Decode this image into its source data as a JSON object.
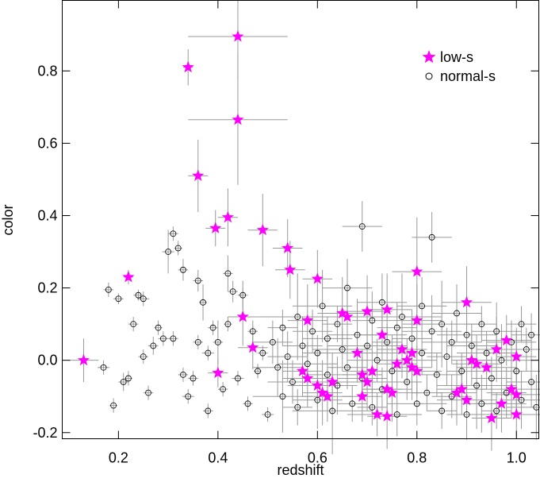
{
  "chart_data": {
    "type": "scatter",
    "xlabel": "redshift",
    "ylabel": "color",
    "xlim": [
      0.087,
      1.045
    ],
    "ylim": [
      -0.217,
      0.995
    ],
    "xticks": [
      0.2,
      0.4,
      0.6,
      0.8,
      {
        "value": 1,
        "label": "1.0"
      }
    ],
    "yticks": [
      -0.2,
      {
        "value": 0,
        "label": "0.0"
      },
      0.2,
      0.4,
      0.6,
      0.8
    ],
    "legend": "upper right",
    "errorbar_color": "#999999",
    "series": [
      {
        "name": "normal-s",
        "color": "#000000",
        "marker": "circle",
        "x": [
          0.18,
          0.19,
          0.2,
          0.17,
          0.21,
          0.22,
          0.23,
          0.24,
          0.25,
          0.25,
          0.26,
          0.27,
          0.28,
          0.29,
          0.3,
          0.31,
          0.31,
          0.32,
          0.33,
          0.33,
          0.34,
          0.35,
          0.36,
          0.36,
          0.37,
          0.38,
          0.38,
          0.39,
          0.4,
          0.41,
          0.42,
          0.42,
          0.43,
          0.44,
          0.45,
          0.46,
          0.47,
          0.48,
          0.49,
          0.5,
          0.51,
          0.52,
          0.53,
          0.53,
          0.54,
          0.55,
          0.56,
          0.56,
          0.57,
          0.58,
          0.59,
          0.6,
          0.6,
          0.61,
          0.62,
          0.62,
          0.63,
          0.64,
          0.64,
          0.65,
          0.66,
          0.66,
          0.67,
          0.68,
          0.69,
          0.69,
          0.7,
          0.71,
          0.71,
          0.72,
          0.73,
          0.73,
          0.74,
          0.75,
          0.76,
          0.76,
          0.77,
          0.78,
          0.79,
          0.8,
          0.81,
          0.81,
          0.82,
          0.83,
          0.83,
          0.84,
          0.85,
          0.85,
          0.86,
          0.87,
          0.87,
          0.88,
          0.89,
          0.9,
          0.9,
          0.91,
          0.92,
          0.93,
          0.93,
          0.94,
          0.95,
          0.96,
          0.96,
          0.97,
          0.98,
          0.99,
          1.0,
          1.01,
          1.01,
          1.02,
          1.03,
          1.03,
          1.04
        ],
        "y": [
          0.195,
          -0.125,
          0.17,
          -0.02,
          -0.06,
          -0.05,
          0.1,
          0.18,
          0.17,
          0.01,
          -0.09,
          0.04,
          0.09,
          0.06,
          0.3,
          0.06,
          0.35,
          0.31,
          0.25,
          -0.04,
          -0.1,
          -0.05,
          0.22,
          0.05,
          0.16,
          -0.14,
          0.02,
          0.09,
          0.05,
          -0.08,
          0.24,
          0.1,
          0.19,
          -0.05,
          0.18,
          -0.12,
          0.08,
          -0.03,
          0.02,
          -0.15,
          0.05,
          -0.02,
          0.09,
          -0.1,
          0.01,
          -0.06,
          0.12,
          -0.13,
          0.04,
          -0.01,
          0.08,
          -0.11,
          0.02,
          0.15,
          -0.04,
          0.06,
          -0.14,
          0.1,
          -0.07,
          0.03,
          -0.02,
          0.2,
          -0.12,
          0.07,
          0.37,
          -0.05,
          0.04,
          -0.13,
          0.11,
          0.0,
          -0.08,
          0.16,
          0.05,
          -0.03,
          0.09,
          -0.15,
          0.12,
          -0.06,
          0.06,
          -0.12,
          0.02,
          0.15,
          -0.09,
          0.08,
          0.34,
          -0.04,
          0.1,
          -0.14,
          0.01,
          0.05,
          -0.1,
          0.13,
          -0.03,
          0.07,
          -0.15,
          0.04,
          -0.07,
          0.1,
          -0.12,
          0.02,
          -0.05,
          0.08,
          -0.14,
          0.0,
          -0.09,
          0.05,
          -0.03,
          0.1,
          -0.11,
          0.03,
          -0.06,
          0.07,
          -0.13
        ],
        "xerr": [
          0.01,
          0.008,
          0.01,
          0.012,
          0.01,
          0.008,
          0.01,
          0.01,
          0.012,
          0.01,
          0.01,
          0.01,
          0.008,
          0.01,
          0.012,
          0.01,
          0.01,
          0.008,
          0.01,
          0.01,
          0.012,
          0.01,
          0.01,
          0.01,
          0.008,
          0.01,
          0.012,
          0.01,
          0.01,
          0.01,
          0.01,
          0.008,
          0.01,
          0.012,
          0.01,
          0.01,
          0.01,
          0.008,
          0.01,
          0.012,
          0.04,
          0.05,
          0.03,
          0.06,
          0.04,
          0.05,
          0.08,
          0.03,
          0.04,
          0.06,
          0.04,
          0.05,
          0.03,
          0.06,
          0.04,
          0.05,
          0.08,
          0.03,
          0.04,
          0.06,
          0.04,
          0.05,
          0.03,
          0.06,
          0.04,
          0.05,
          0.08,
          0.03,
          0.04,
          0.06,
          0.04,
          0.05,
          0.03,
          0.06,
          0.04,
          0.05,
          0.08,
          0.03,
          0.04,
          0.06,
          0.04,
          0.05,
          0.03,
          0.06,
          0.04,
          0.05,
          0.08,
          0.03,
          0.04,
          0.06,
          0.04,
          0.05,
          0.03,
          0.06,
          0.04,
          0.05,
          0.08,
          0.03,
          0.04,
          0.06,
          0.04,
          0.05,
          0.03,
          0.06,
          0.04,
          0.05,
          0.08,
          0.03,
          0.04,
          0.06,
          0.05,
          0.04,
          0.06
        ],
        "yerr": [
          0.02,
          0.02,
          0.015,
          0.02,
          0.025,
          0.02,
          0.02,
          0.015,
          0.02,
          0.02,
          0.02,
          0.025,
          0.02,
          0.02,
          0.06,
          0.02,
          0.02,
          0.02,
          0.03,
          0.02,
          0.02,
          0.02,
          0.03,
          0.02,
          0.05,
          0.02,
          0.02,
          0.02,
          0.06,
          0.02,
          0.05,
          0.02,
          0.03,
          0.02,
          0.04,
          0.02,
          0.03,
          0.02,
          0.02,
          0.02,
          0.06,
          0.08,
          0.05,
          0.1,
          0.07,
          0.06,
          0.12,
          0.05,
          0.08,
          0.06,
          0.06,
          0.08,
          0.05,
          0.1,
          0.07,
          0.06,
          0.12,
          0.05,
          0.08,
          0.06,
          0.06,
          0.08,
          0.05,
          0.1,
          0.07,
          0.06,
          0.12,
          0.05,
          0.08,
          0.06,
          0.06,
          0.08,
          0.05,
          0.1,
          0.07,
          0.06,
          0.12,
          0.05,
          0.08,
          0.06,
          0.06,
          0.08,
          0.05,
          0.1,
          0.07,
          0.06,
          0.12,
          0.05,
          0.08,
          0.06,
          0.06,
          0.08,
          0.05,
          0.1,
          0.07,
          0.06,
          0.12,
          0.05,
          0.08,
          0.06,
          0.06,
          0.08,
          0.05,
          0.1,
          0.07,
          0.06,
          0.12,
          0.05,
          0.08,
          0.06,
          0.07,
          0.06,
          0.09
        ]
      },
      {
        "name": "low-s",
        "color": "#ff00ff",
        "marker": "star",
        "x": [
          0.13,
          0.22,
          0.34,
          0.44,
          0.44,
          0.36,
          0.42,
          0.395,
          0.49,
          0.54,
          0.545,
          0.6,
          0.45,
          0.47,
          0.4,
          0.58,
          0.65,
          0.66,
          0.74,
          0.8,
          0.8,
          0.9,
          0.7,
          0.57,
          0.58,
          0.6,
          0.61,
          0.62,
          0.68,
          0.69,
          0.7,
          0.72,
          0.74,
          0.73,
          0.75,
          0.76,
          0.77,
          0.78,
          0.79,
          0.8,
          0.79,
          0.69,
          0.74,
          0.71,
          0.88,
          0.89,
          0.9,
          0.91,
          0.92,
          0.94,
          0.96,
          0.98,
          0.99,
          1.0,
          0.97,
          1.0,
          0.95,
          1.0,
          0.63
        ],
        "y": [
          0.0,
          0.23,
          0.81,
          0.895,
          0.665,
          0.51,
          0.395,
          0.365,
          0.36,
          0.31,
          0.25,
          0.225,
          0.12,
          0.035,
          -0.035,
          0.11,
          0.13,
          0.12,
          0.14,
          0.245,
          0.11,
          0.16,
          0.135,
          -0.03,
          -0.05,
          -0.07,
          -0.09,
          -0.1,
          0.02,
          -0.04,
          -0.06,
          -0.15,
          -0.155,
          0.07,
          -0.09,
          -0.01,
          0.03,
          0.0,
          -0.02,
          -0.03,
          0.02,
          -0.1,
          -0.08,
          -0.03,
          -0.09,
          -0.08,
          -0.11,
          0.0,
          -0.01,
          -0.02,
          0.03,
          0.055,
          -0.08,
          0.01,
          -0.12,
          -0.15,
          -0.16,
          -0.095,
          -0.06
        ],
        "xerr": [
          0.03,
          0.01,
          0.01,
          0.1,
          0.1,
          0.02,
          0.02,
          0.02,
          0.03,
          0.03,
          0.03,
          0.03,
          0.03,
          0.03,
          0.02,
          0.04,
          0.05,
          0.05,
          0.05,
          0.05,
          0.05,
          0.05,
          0.05,
          0.04,
          0.05,
          0.06,
          0.04,
          0.05,
          0.06,
          0.04,
          0.05,
          0.06,
          0.04,
          0.05,
          0.06,
          0.04,
          0.05,
          0.06,
          0.04,
          0.05,
          0.06,
          0.04,
          0.05,
          0.06,
          0.04,
          0.05,
          0.06,
          0.04,
          0.05,
          0.06,
          0.04,
          0.05,
          0.06,
          0.04,
          0.05,
          0.06,
          0.04,
          0.05,
          0.06
        ],
        "yerr": [
          0.06,
          0.02,
          0.05,
          0.12,
          0.18,
          0.1,
          0.08,
          0.05,
          0.1,
          0.08,
          0.08,
          0.08,
          0.08,
          0.06,
          0.04,
          0.1,
          0.1,
          0.1,
          0.1,
          0.15,
          0.1,
          0.1,
          0.1,
          0.07,
          0.08,
          0.06,
          0.09,
          0.07,
          0.08,
          0.07,
          0.08,
          0.06,
          0.09,
          0.07,
          0.08,
          0.07,
          0.08,
          0.06,
          0.09,
          0.07,
          0.08,
          0.07,
          0.08,
          0.06,
          0.09,
          0.07,
          0.08,
          0.07,
          0.08,
          0.06,
          0.09,
          0.07,
          0.08,
          0.07,
          0.08,
          0.06,
          0.09,
          0.07,
          0.08
        ]
      }
    ]
  }
}
